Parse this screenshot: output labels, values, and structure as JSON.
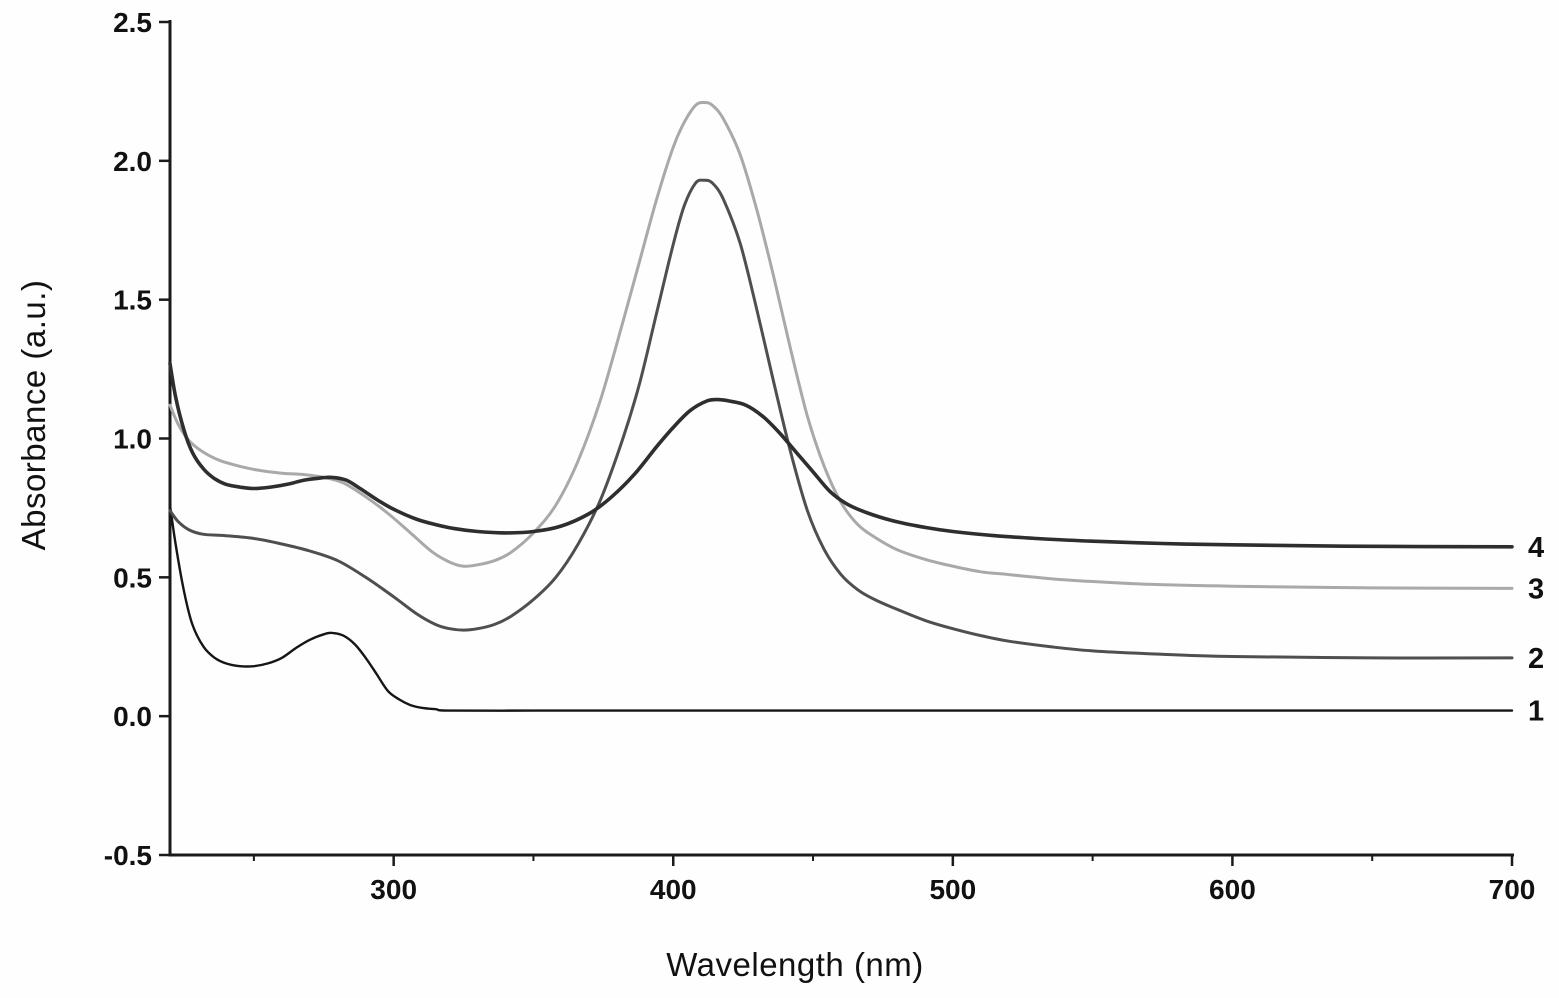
{
  "figure": {
    "background": "#fefefe",
    "axis_color": "#1a1a1a"
  },
  "chart_data": {
    "type": "line",
    "title": "",
    "xlabel": "Wavelength (nm)",
    "ylabel": "Absorbance (a.u.)",
    "xlim": [
      220,
      700
    ],
    "ylim": [
      -0.5,
      2.5
    ],
    "x_ticks": [
      300,
      400,
      500,
      600,
      700
    ],
    "x_tick_labels": [
      "300",
      "400",
      "500",
      "600",
      "700"
    ],
    "x_minor_ticks": [
      250,
      350,
      450,
      550,
      650
    ],
    "y_ticks": [
      -0.5,
      0.0,
      0.5,
      1.0,
      1.5,
      2.0,
      2.5
    ],
    "y_tick_labels": [
      "-0.5",
      "0.0",
      "0.5",
      "1.0",
      "1.5",
      "2.0",
      "2.5"
    ],
    "grid": false,
    "legend_position": "curve-end-labels-right",
    "series": [
      {
        "name": "1",
        "color": "#161616",
        "width": 2.4,
        "label_y": 0.02,
        "points": [
          [
            220,
            0.76
          ],
          [
            222,
            0.62
          ],
          [
            225,
            0.45
          ],
          [
            228,
            0.33
          ],
          [
            232,
            0.25
          ],
          [
            236,
            0.21
          ],
          [
            240,
            0.19
          ],
          [
            245,
            0.18
          ],
          [
            250,
            0.18
          ],
          [
            255,
            0.19
          ],
          [
            260,
            0.21
          ],
          [
            265,
            0.245
          ],
          [
            270,
            0.275
          ],
          [
            275,
            0.295
          ],
          [
            278,
            0.3
          ],
          [
            282,
            0.29
          ],
          [
            286,
            0.26
          ],
          [
            290,
            0.21
          ],
          [
            294,
            0.15
          ],
          [
            298,
            0.09
          ],
          [
            302,
            0.06
          ],
          [
            306,
            0.04
          ],
          [
            310,
            0.03
          ],
          [
            315,
            0.025
          ],
          [
            320,
            0.02
          ],
          [
            350,
            0.02
          ],
          [
            380,
            0.02
          ],
          [
            400,
            0.02
          ],
          [
            430,
            0.02
          ],
          [
            460,
            0.02
          ],
          [
            500,
            0.02
          ],
          [
            550,
            0.02
          ],
          [
            600,
            0.02
          ],
          [
            650,
            0.02
          ],
          [
            700,
            0.02
          ]
        ]
      },
      {
        "name": "2",
        "color": "#4f4f4f",
        "width": 3,
        "label_y": 0.21,
        "points": [
          [
            220,
            0.74
          ],
          [
            223,
            0.7
          ],
          [
            227,
            0.67
          ],
          [
            232,
            0.655
          ],
          [
            240,
            0.65
          ],
          [
            250,
            0.64
          ],
          [
            260,
            0.62
          ],
          [
            270,
            0.595
          ],
          [
            280,
            0.56
          ],
          [
            290,
            0.5
          ],
          [
            300,
            0.43
          ],
          [
            308,
            0.37
          ],
          [
            315,
            0.33
          ],
          [
            320,
            0.315
          ],
          [
            325,
            0.31
          ],
          [
            330,
            0.315
          ],
          [
            336,
            0.33
          ],
          [
            342,
            0.36
          ],
          [
            350,
            0.42
          ],
          [
            358,
            0.5
          ],
          [
            366,
            0.62
          ],
          [
            374,
            0.78
          ],
          [
            382,
            1.0
          ],
          [
            388,
            1.2
          ],
          [
            394,
            1.45
          ],
          [
            400,
            1.7
          ],
          [
            404,
            1.84
          ],
          [
            408,
            1.92
          ],
          [
            411,
            1.93
          ],
          [
            414,
            1.92
          ],
          [
            418,
            1.86
          ],
          [
            424,
            1.7
          ],
          [
            430,
            1.46
          ],
          [
            436,
            1.2
          ],
          [
            442,
            0.95
          ],
          [
            448,
            0.74
          ],
          [
            454,
            0.6
          ],
          [
            460,
            0.51
          ],
          [
            466,
            0.455
          ],
          [
            472,
            0.42
          ],
          [
            480,
            0.385
          ],
          [
            490,
            0.345
          ],
          [
            500,
            0.315
          ],
          [
            510,
            0.29
          ],
          [
            520,
            0.27
          ],
          [
            535,
            0.25
          ],
          [
            550,
            0.235
          ],
          [
            570,
            0.225
          ],
          [
            600,
            0.215
          ],
          [
            650,
            0.21
          ],
          [
            700,
            0.21
          ]
        ]
      },
      {
        "name": "3",
        "color": "#a9a9a9",
        "width": 3,
        "label_y": 0.46,
        "points": [
          [
            220,
            1.12
          ],
          [
            223,
            1.05
          ],
          [
            227,
            0.99
          ],
          [
            232,
            0.95
          ],
          [
            238,
            0.92
          ],
          [
            245,
            0.9
          ],
          [
            252,
            0.885
          ],
          [
            260,
            0.875
          ],
          [
            268,
            0.87
          ],
          [
            275,
            0.86
          ],
          [
            282,
            0.84
          ],
          [
            290,
            0.79
          ],
          [
            298,
            0.73
          ],
          [
            306,
            0.66
          ],
          [
            314,
            0.59
          ],
          [
            320,
            0.555
          ],
          [
            325,
            0.54
          ],
          [
            330,
            0.545
          ],
          [
            336,
            0.56
          ],
          [
            342,
            0.59
          ],
          [
            350,
            0.66
          ],
          [
            358,
            0.76
          ],
          [
            366,
            0.92
          ],
          [
            374,
            1.14
          ],
          [
            382,
            1.42
          ],
          [
            388,
            1.64
          ],
          [
            394,
            1.86
          ],
          [
            400,
            2.05
          ],
          [
            404,
            2.14
          ],
          [
            408,
            2.2
          ],
          [
            411,
            2.21
          ],
          [
            414,
            2.2
          ],
          [
            418,
            2.15
          ],
          [
            424,
            2.02
          ],
          [
            430,
            1.82
          ],
          [
            436,
            1.58
          ],
          [
            442,
            1.32
          ],
          [
            448,
            1.08
          ],
          [
            454,
            0.9
          ],
          [
            460,
            0.77
          ],
          [
            466,
            0.69
          ],
          [
            472,
            0.645
          ],
          [
            480,
            0.6
          ],
          [
            490,
            0.565
          ],
          [
            500,
            0.54
          ],
          [
            510,
            0.52
          ],
          [
            520,
            0.51
          ],
          [
            535,
            0.495
          ],
          [
            550,
            0.485
          ],
          [
            570,
            0.475
          ],
          [
            600,
            0.468
          ],
          [
            650,
            0.462
          ],
          [
            700,
            0.46
          ]
        ]
      },
      {
        "name": "4",
        "color": "#2e2e2e",
        "width": 3.6,
        "label_y": 0.61,
        "points": [
          [
            220,
            1.27
          ],
          [
            222,
            1.15
          ],
          [
            225,
            1.03
          ],
          [
            228,
            0.95
          ],
          [
            232,
            0.89
          ],
          [
            236,
            0.855
          ],
          [
            240,
            0.835
          ],
          [
            245,
            0.825
          ],
          [
            250,
            0.82
          ],
          [
            256,
            0.825
          ],
          [
            262,
            0.835
          ],
          [
            268,
            0.85
          ],
          [
            274,
            0.858
          ],
          [
            278,
            0.86
          ],
          [
            283,
            0.85
          ],
          [
            288,
            0.82
          ],
          [
            294,
            0.78
          ],
          [
            300,
            0.745
          ],
          [
            308,
            0.71
          ],
          [
            315,
            0.69
          ],
          [
            322,
            0.675
          ],
          [
            330,
            0.665
          ],
          [
            340,
            0.66
          ],
          [
            350,
            0.665
          ],
          [
            360,
            0.685
          ],
          [
            370,
            0.73
          ],
          [
            378,
            0.79
          ],
          [
            386,
            0.87
          ],
          [
            394,
            0.97
          ],
          [
            400,
            1.04
          ],
          [
            406,
            1.1
          ],
          [
            412,
            1.135
          ],
          [
            416,
            1.14
          ],
          [
            420,
            1.135
          ],
          [
            426,
            1.12
          ],
          [
            432,
            1.08
          ],
          [
            438,
            1.02
          ],
          [
            444,
            0.95
          ],
          [
            450,
            0.88
          ],
          [
            456,
            0.81
          ],
          [
            462,
            0.765
          ],
          [
            470,
            0.73
          ],
          [
            480,
            0.7
          ],
          [
            490,
            0.68
          ],
          [
            500,
            0.665
          ],
          [
            515,
            0.65
          ],
          [
            530,
            0.64
          ],
          [
            550,
            0.63
          ],
          [
            575,
            0.622
          ],
          [
            600,
            0.617
          ],
          [
            640,
            0.612
          ],
          [
            700,
            0.61
          ]
        ]
      }
    ]
  }
}
